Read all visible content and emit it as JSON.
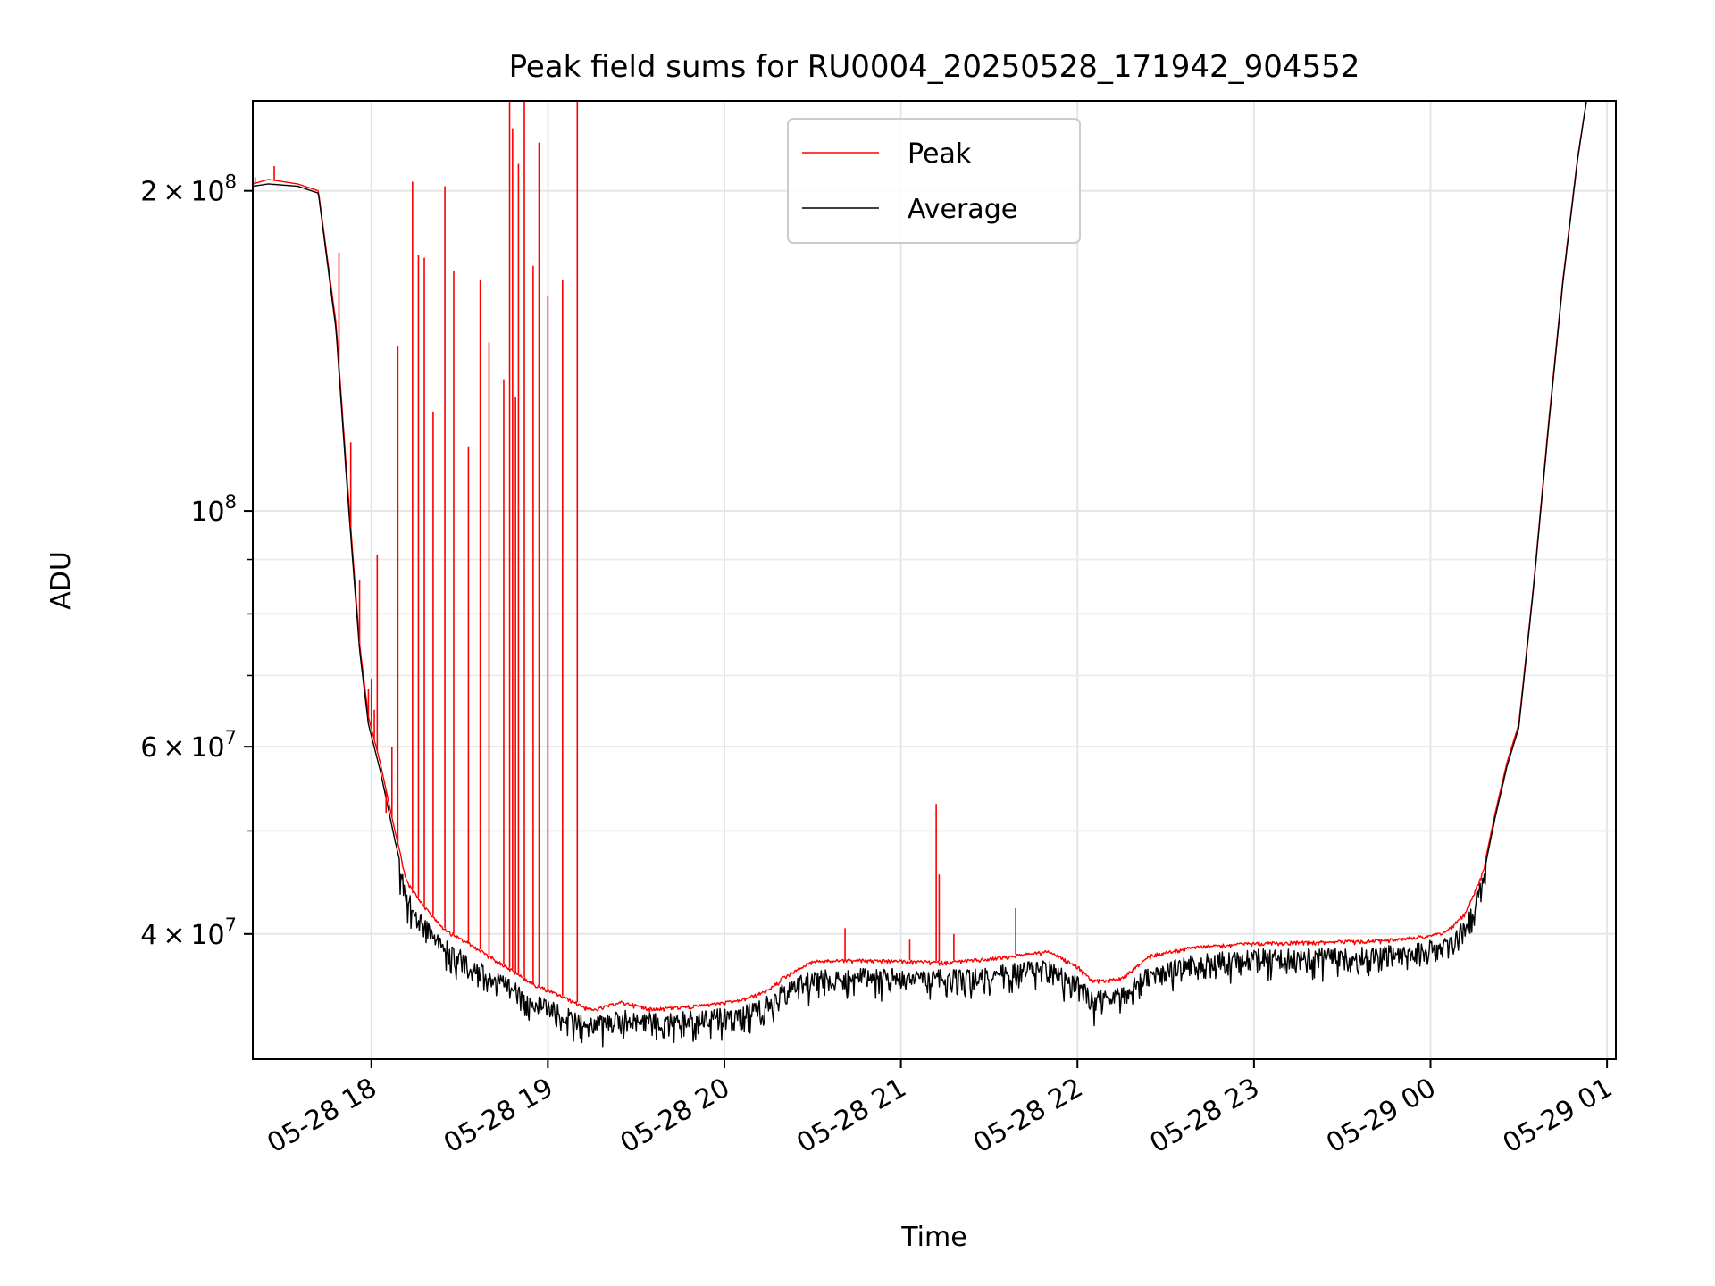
{
  "chart_data": {
    "type": "line",
    "title": "Peak field sums for RU0004_20250528_171942_904552",
    "xlabel": "Time",
    "ylabel": "ADU",
    "y_scale": "log",
    "grid": true,
    "legend_position": "upper center",
    "xlim": [
      "2025-05-28 17:19:42",
      "2025-05-29 01:03:00"
    ],
    "ylim": [
      30500000,
      243000000
    ],
    "x_ticks": [
      {
        "value": "2025-05-28 18:00",
        "label": "05-28 18"
      },
      {
        "value": "2025-05-28 19:00",
        "label": "05-28 19"
      },
      {
        "value": "2025-05-28 20:00",
        "label": "05-28 20"
      },
      {
        "value": "2025-05-28 21:00",
        "label": "05-28 21"
      },
      {
        "value": "2025-05-28 22:00",
        "label": "05-28 22"
      },
      {
        "value": "2025-05-28 23:00",
        "label": "05-28 23"
      },
      {
        "value": "2025-05-29 00:00",
        "label": "05-29 00"
      },
      {
        "value": "2025-05-29 01:00",
        "label": "05-29 01"
      }
    ],
    "y_ticks": [
      {
        "value": 40000000,
        "base": "4",
        "exp": "7",
        "style": "sci"
      },
      {
        "value": 60000000,
        "base": "6",
        "exp": "7",
        "style": "sci"
      },
      {
        "value": 100000000,
        "base": "",
        "exp": "8",
        "style": "pow"
      },
      {
        "value": 200000000,
        "base": "2",
        "exp": "8",
        "style": "sci"
      }
    ],
    "y_minor_ticks": [
      30000000,
      50000000,
      70000000,
      80000000,
      90000000
    ],
    "series": [
      {
        "name": "Peak",
        "color": "#ff0000",
        "x": [
          "2025-05-28 17:19:42",
          "2025-05-28 17:25",
          "2025-05-28 17:35",
          "2025-05-28 17:42",
          "2025-05-28 17:48",
          "2025-05-28 17:52",
          "2025-05-28 17:56",
          "2025-05-28 17:59",
          "2025-05-28 18:03",
          "2025-05-28 18:08",
          "2025-05-28 18:12",
          "2025-05-28 18:18",
          "2025-05-28 18:25",
          "2025-05-28 18:35",
          "2025-05-28 18:45",
          "2025-05-28 18:55",
          "2025-05-28 19:05",
          "2025-05-28 19:15",
          "2025-05-28 19:25",
          "2025-05-28 19:35",
          "2025-05-28 19:50",
          "2025-05-28 20:05",
          "2025-05-28 20:15",
          "2025-05-28 20:20",
          "2025-05-28 20:30",
          "2025-05-28 20:45",
          "2025-05-28 21:00",
          "2025-05-28 21:15",
          "2025-05-28 21:30",
          "2025-05-28 21:50",
          "2025-05-28 22:00",
          "2025-05-28 22:05",
          "2025-05-28 22:15",
          "2025-05-28 22:25",
          "2025-05-28 22:40",
          "2025-05-28 23:00",
          "2025-05-28 23:20",
          "2025-05-28 23:40",
          "2025-05-28 23:55",
          "2025-05-29 00:05",
          "2025-05-29 00:12",
          "2025-05-29 00:18",
          "2025-05-29 00:22",
          "2025-05-29 00:26",
          "2025-05-29 00:30",
          "2025-05-29 00:35",
          "2025-05-29 00:40",
          "2025-05-29 00:45",
          "2025-05-29 00:50",
          "2025-05-29 00:53",
          "2025-05-29 00:55"
        ],
        "y": [
          203000000,
          205000000,
          203000000,
          200000000,
          150000000,
          105000000,
          75000000,
          64000000,
          58000000,
          50000000,
          45000000,
          42500000,
          40500000,
          39000000,
          37500000,
          36000000,
          35000000,
          34000000,
          34600000,
          34100000,
          34300000,
          34700000,
          35500000,
          36500000,
          37800000,
          37900000,
          37800000,
          37700000,
          38000000,
          38600000,
          37400000,
          36200000,
          36400000,
          38300000,
          39000000,
          39300000,
          39400000,
          39500000,
          39800000,
          40200000,
          42000000,
          46000000,
          52000000,
          58000000,
          63000000,
          85000000,
          120000000,
          165000000,
          215000000,
          243000000,
          243000000
        ]
      },
      {
        "name": "Average",
        "color": "#000000",
        "x": [
          "2025-05-28 17:19:42",
          "2025-05-28 17:25",
          "2025-05-28 17:35",
          "2025-05-28 17:42",
          "2025-05-28 17:48",
          "2025-05-28 17:52",
          "2025-05-28 17:56",
          "2025-05-28 17:59",
          "2025-05-28 18:03",
          "2025-05-28 18:08",
          "2025-05-28 18:12",
          "2025-05-28 18:18",
          "2025-05-28 18:25",
          "2025-05-28 18:35",
          "2025-05-28 18:45",
          "2025-05-28 18:55",
          "2025-05-28 19:05",
          "2025-05-28 19:15",
          "2025-05-28 19:25",
          "2025-05-28 19:35",
          "2025-05-28 19:50",
          "2025-05-28 20:05",
          "2025-05-28 20:15",
          "2025-05-28 20:20",
          "2025-05-28 20:30",
          "2025-05-28 20:45",
          "2025-05-28 21:00",
          "2025-05-28 21:15",
          "2025-05-28 21:30",
          "2025-05-28 21:50",
          "2025-05-28 22:00",
          "2025-05-28 22:05",
          "2025-05-28 22:15",
          "2025-05-28 22:25",
          "2025-05-28 22:40",
          "2025-05-28 23:00",
          "2025-05-28 23:20",
          "2025-05-28 23:40",
          "2025-05-28 23:55",
          "2025-05-29 00:05",
          "2025-05-29 00:12",
          "2025-05-29 00:18",
          "2025-05-29 00:22",
          "2025-05-29 00:26",
          "2025-05-29 00:30",
          "2025-05-29 00:35",
          "2025-05-29 00:40",
          "2025-05-29 00:45",
          "2025-05-29 00:50",
          "2025-05-29 00:53",
          "2025-05-29 00:55"
        ],
        "y": [
          202000000,
          203000000,
          202000000,
          199000000,
          148000000,
          103000000,
          74000000,
          63000000,
          57000000,
          49000000,
          44000000,
          41500000,
          39500000,
          38000000,
          36500000,
          35200000,
          34200000,
          33400000,
          34000000,
          33700000,
          33900000,
          34200000,
          35000000,
          36000000,
          37000000,
          37200000,
          37100000,
          37000000,
          37300000,
          37900000,
          36600000,
          35300000,
          35600000,
          37400000,
          38300000,
          38700000,
          38800000,
          38900000,
          39200000,
          39700000,
          41400000,
          45500000,
          51500000,
          57500000,
          62500000,
          84500000,
          119000000,
          164000000,
          214000000,
          243000000,
          243000000
        ]
      }
    ],
    "peak_spikes": [
      {
        "x": "2025-05-28 17:20:30",
        "y": 206000000
      },
      {
        "x": "2025-05-28 17:27",
        "y": 211000000
      },
      {
        "x": "2025-05-28 17:49",
        "y": 175000000
      },
      {
        "x": "2025-05-28 17:53",
        "y": 116000000
      },
      {
        "x": "2025-05-28 17:56",
        "y": 86000000
      },
      {
        "x": "2025-05-28 17:59",
        "y": 68000000
      },
      {
        "x": "2025-05-28 18:00",
        "y": 69500000
      },
      {
        "x": "2025-05-28 18:01",
        "y": 65000000
      },
      {
        "x": "2025-05-28 18:02",
        "y": 91000000
      },
      {
        "x": "2025-05-28 18:05",
        "y": 52000000
      },
      {
        "x": "2025-05-28 18:07",
        "y": 60000000
      },
      {
        "x": "2025-05-28 18:09",
        "y": 143000000
      },
      {
        "x": "2025-05-28 18:14",
        "y": 204000000
      },
      {
        "x": "2025-05-28 18:16",
        "y": 174000000
      },
      {
        "x": "2025-05-28 18:18",
        "y": 173000000
      },
      {
        "x": "2025-05-28 18:21",
        "y": 124000000
      },
      {
        "x": "2025-05-28 18:25",
        "y": 202000000
      },
      {
        "x": "2025-05-28 18:28",
        "y": 168000000
      },
      {
        "x": "2025-05-28 18:33",
        "y": 115000000
      },
      {
        "x": "2025-05-28 18:37",
        "y": 165000000
      },
      {
        "x": "2025-05-28 18:40",
        "y": 144000000
      },
      {
        "x": "2025-05-28 18:45",
        "y": 133000000
      },
      {
        "x": "2025-05-28 18:47",
        "y": 243000000
      },
      {
        "x": "2025-05-28 18:48",
        "y": 229000000
      },
      {
        "x": "2025-05-28 18:49",
        "y": 128000000
      },
      {
        "x": "2025-05-28 18:50",
        "y": 212000000
      },
      {
        "x": "2025-05-28 18:52",
        "y": 243000000
      },
      {
        "x": "2025-05-28 18:55",
        "y": 170000000
      },
      {
        "x": "2025-05-28 18:57",
        "y": 222000000
      },
      {
        "x": "2025-05-28 19:00",
        "y": 159000000
      },
      {
        "x": "2025-05-28 19:05",
        "y": 165000000
      },
      {
        "x": "2025-05-28 19:10",
        "y": 243000000
      },
      {
        "x": "2025-05-28 20:41",
        "y": 40500000
      },
      {
        "x": "2025-05-28 21:03",
        "y": 39500000
      },
      {
        "x": "2025-05-28 21:12",
        "y": 53000000
      },
      {
        "x": "2025-05-28 21:13",
        "y": 45500000
      },
      {
        "x": "2025-05-28 21:18",
        "y": 40000000
      },
      {
        "x": "2025-05-28 21:39",
        "y": 42300000
      }
    ],
    "legend": [
      "Peak",
      "Average"
    ]
  }
}
